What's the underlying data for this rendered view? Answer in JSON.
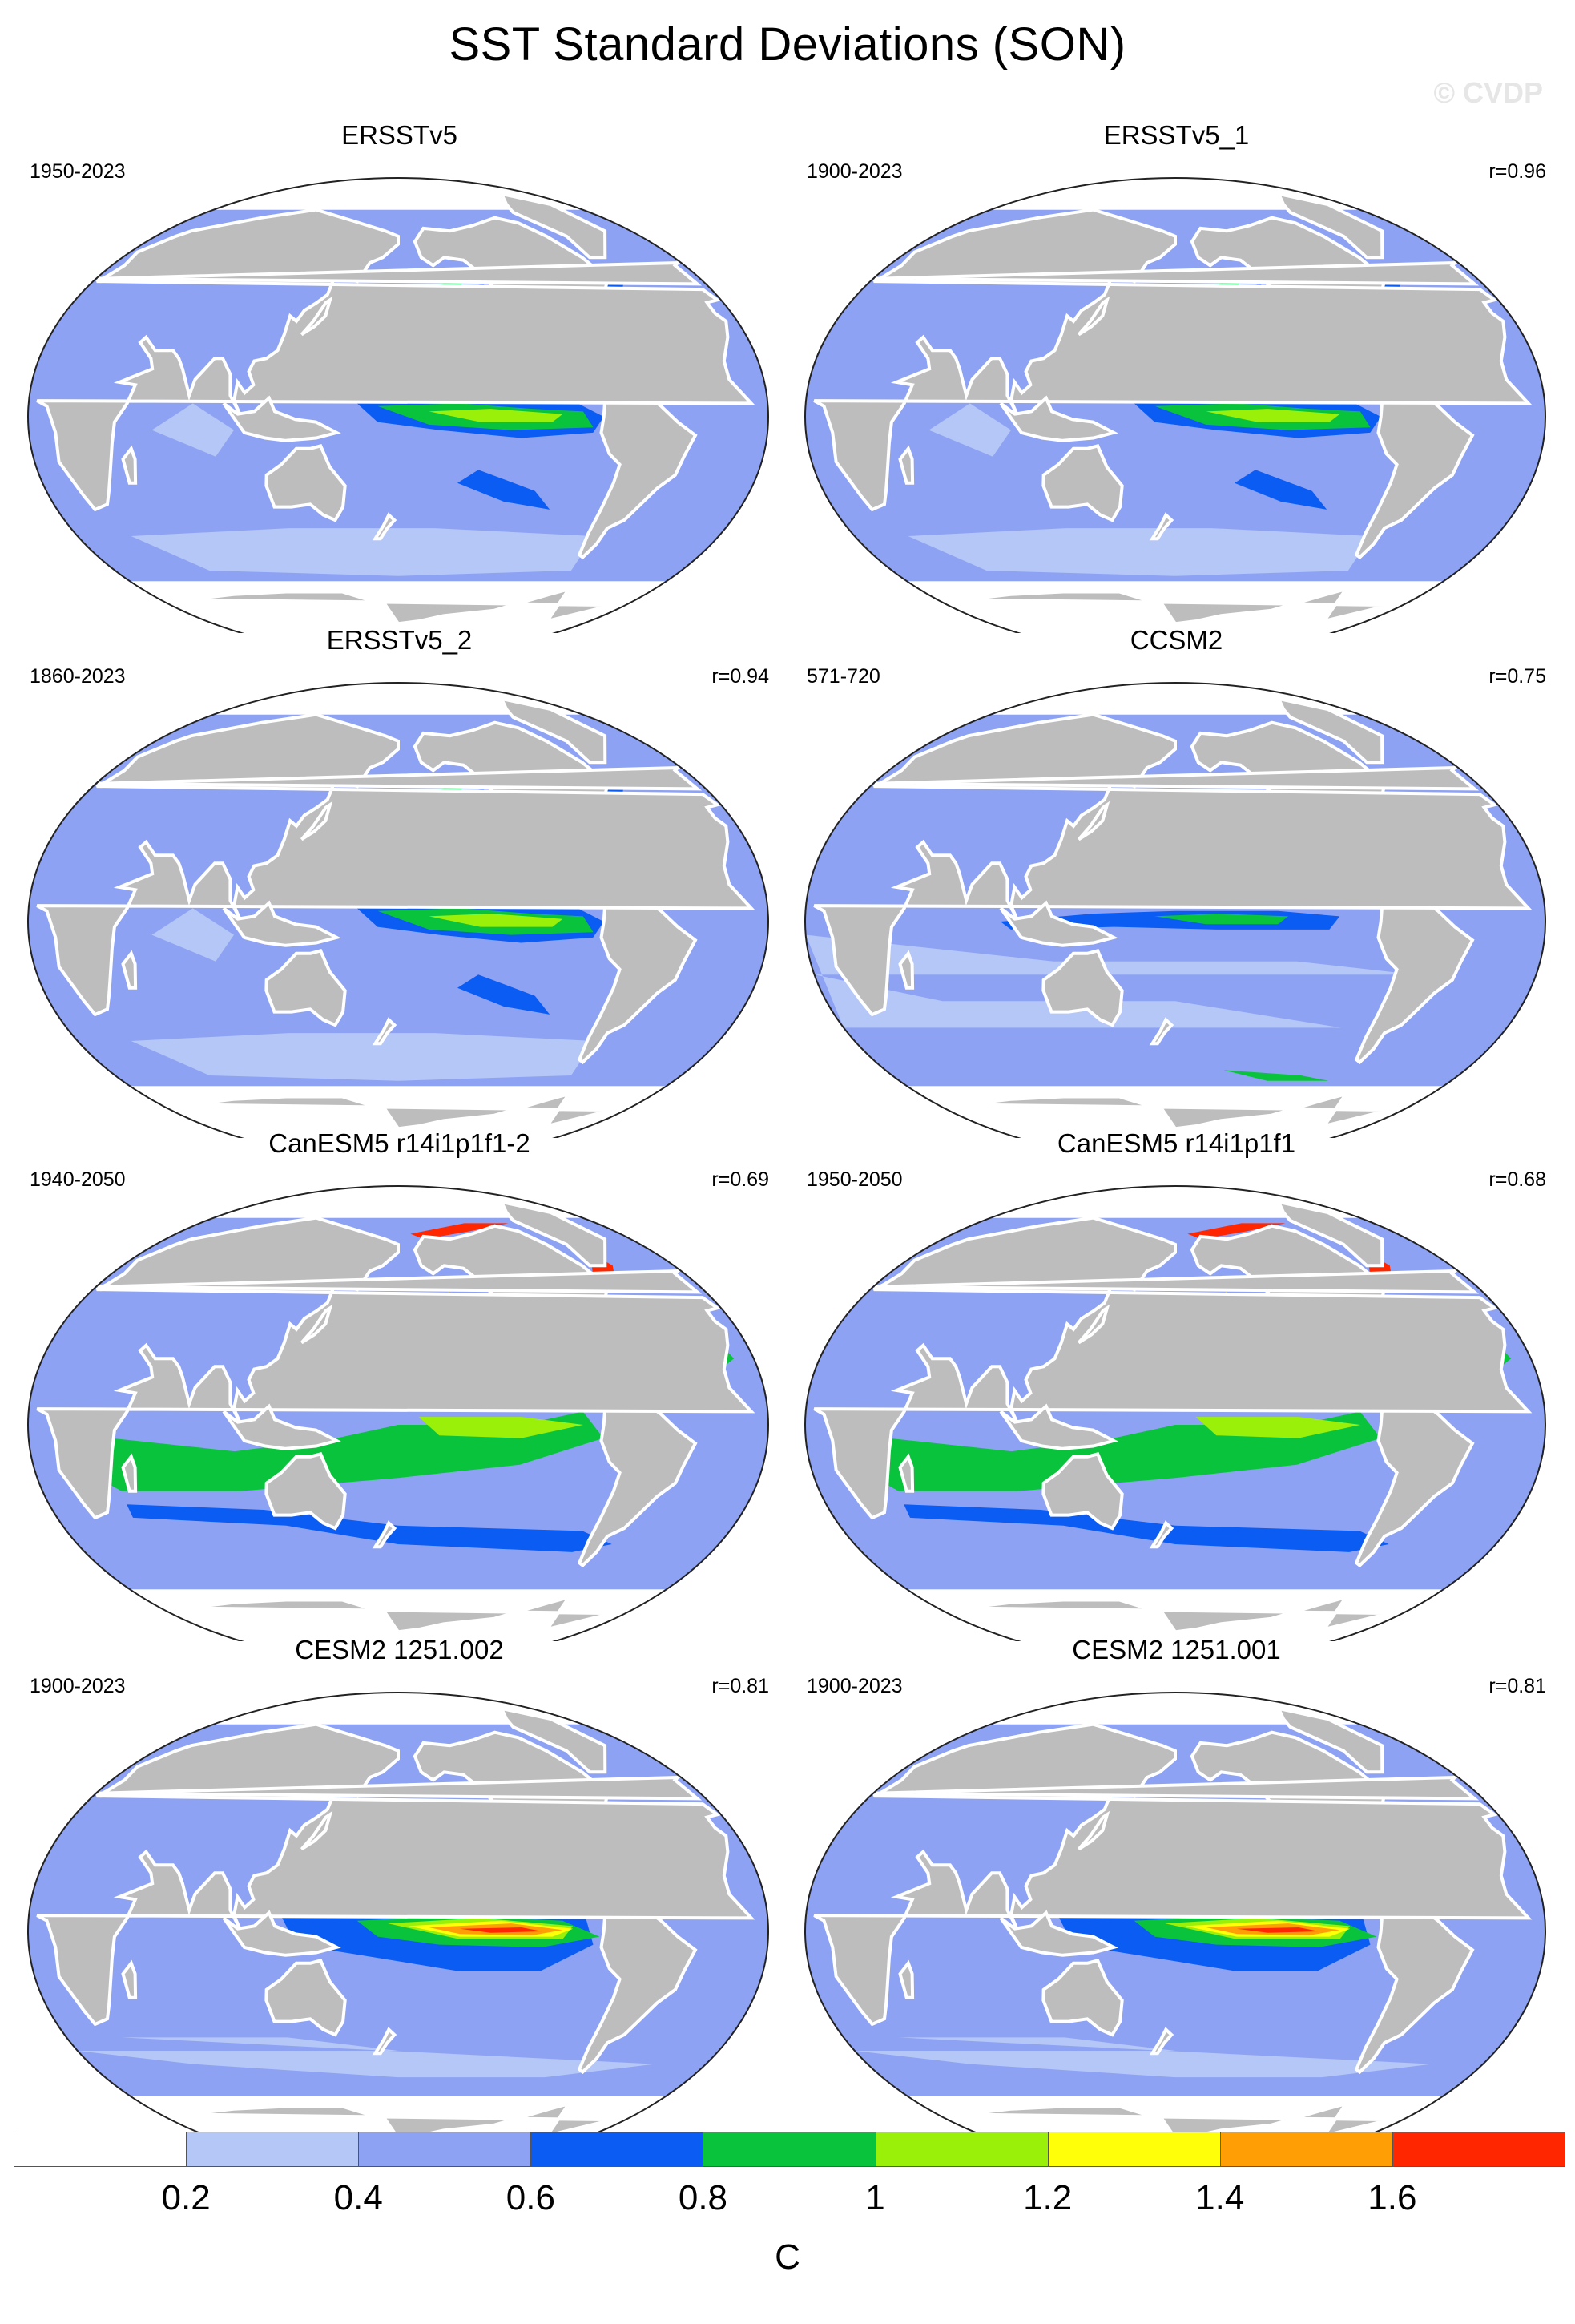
{
  "title": "SST Standard Deviations (SON)",
  "watermark": "© CVDP",
  "colors": {
    "land": "#bdbdbd",
    "ocean_base": "#8ea2f4",
    "levels": [
      "#ffffff",
      "#b5c7f7",
      "#8ea2f4",
      "#0a5cf3",
      "#0ac33c",
      "#9bf00a",
      "#ffff0a",
      "#ff9e05",
      "#ff2600"
    ]
  },
  "panels": [
    {
      "title": "ERSSTv5",
      "years": "1950-2023",
      "r": "",
      "pattern": "obs"
    },
    {
      "title": "ERSSTv5_1",
      "years": "1900-2023",
      "r": "r=0.96",
      "pattern": "obs"
    },
    {
      "title": "ERSSTv5_2",
      "years": "1860-2023",
      "r": "r=0.94",
      "pattern": "obs"
    },
    {
      "title": "CCSM2",
      "years": "571-720",
      "r": "r=0.75",
      "pattern": "ccsm"
    },
    {
      "title": "CanESM5 r14i1p1f1-2",
      "years": "1940-2050",
      "r": "r=0.69",
      "pattern": "canesm"
    },
    {
      "title": "CanESM5 r14i1p1f1",
      "years": "1950-2050",
      "r": "r=0.68",
      "pattern": "canesm"
    },
    {
      "title": "CESM2 1251.002",
      "years": "1900-2023",
      "r": "r=0.81",
      "pattern": "cesm"
    },
    {
      "title": "CESM2 1251.001",
      "years": "1900-2023",
      "r": "r=0.81",
      "pattern": "cesm"
    }
  ],
  "colorbar": {
    "ticks": [
      "0.2",
      "0.4",
      "0.6",
      "0.8",
      "1",
      "1.2",
      "1.4",
      "1.6"
    ],
    "unit": "C"
  }
}
